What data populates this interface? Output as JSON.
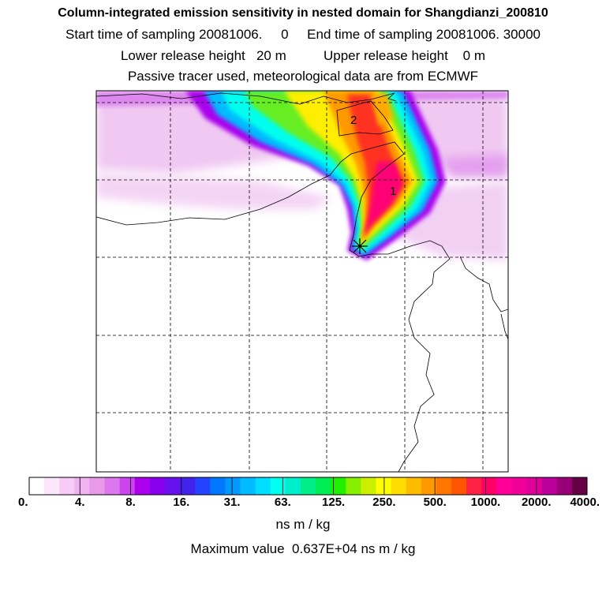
{
  "header": {
    "title": "Column-integrated emission sensitivity in nested domain for Shangdianzi_200810",
    "line2": "Start time of sampling 20081006.     0     End time of sampling 20081006. 30000",
    "line3": "Lower release height   20 m          Upper release height    0 m",
    "line4": "Passive tracer used, meteorological data are from ECMWF"
  },
  "map": {
    "labels": [
      "1",
      "2"
    ],
    "marker_icon": "star-marker-icon"
  },
  "colorbar": {
    "colors": [
      "#ffffff",
      "#fbe6fb",
      "#f6ccf6",
      "#f0b3f0",
      "#e899e8",
      "#dd77ee",
      "#cc44ee",
      "#aa00ee",
      "#8800ee",
      "#6611ee",
      "#4422ee",
      "#2244ff",
      "#0077ff",
      "#0099ff",
      "#00bbff",
      "#00ddff",
      "#00ffee",
      "#00eecc",
      "#00ee88",
      "#00ee55",
      "#22ee00",
      "#88ee00",
      "#ccee00",
      "#ffff00",
      "#ffdd00",
      "#ffbb00",
      "#ff9900",
      "#ff7700",
      "#ff5500",
      "#ff2244",
      "#ff0066",
      "#ff0099",
      "#ee0099",
      "#dd0099",
      "#bb0099",
      "#990077",
      "#660044"
    ],
    "ticks": [
      "0.",
      "4.",
      "8.",
      "16.",
      "31.",
      "63.",
      "125.",
      "250.",
      "500.",
      "1000.",
      "2000.",
      "4000."
    ]
  },
  "units": "ns m / kg",
  "max_value": "Maximum value  0.637E+04 ns m / kg"
}
